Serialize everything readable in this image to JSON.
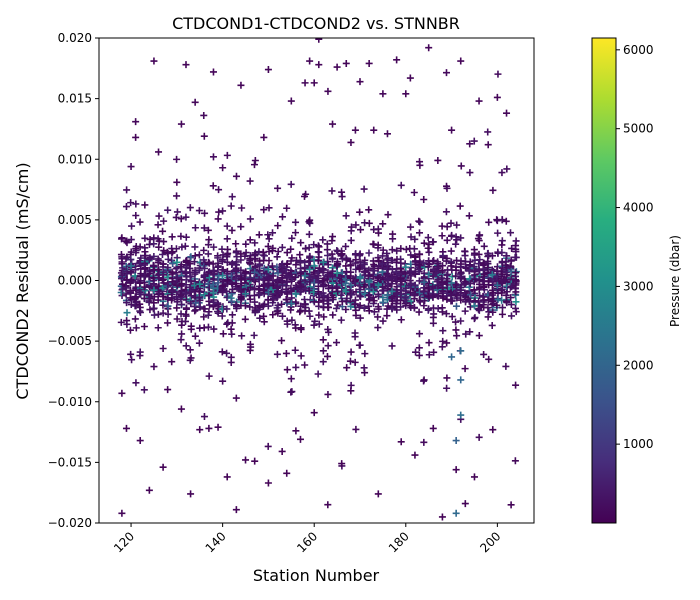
{
  "chart_data": {
    "type": "scatter",
    "marker": "plus",
    "title": "CTDCOND1-CTDCOND2 vs. STNNBR",
    "xlabel": "Station Number",
    "ylabel": "CTDCOND2 Residual (mS/cm)",
    "xlim": [
      113,
      208
    ],
    "ylim": [
      -0.02,
      0.02
    ],
    "xticks": [
      120,
      140,
      160,
      180,
      200
    ],
    "xtick_labels": [
      "120",
      "140",
      "160",
      "180",
      "200"
    ],
    "yticks": [
      -0.02,
      -0.015,
      -0.01,
      -0.005,
      0.0,
      0.005,
      0.01,
      0.015,
      0.02
    ],
    "ytick_labels": [
      "−0.020",
      "−0.015",
      "−0.010",
      "−0.005",
      "0.000",
      "0.005",
      "0.010",
      "0.015",
      "0.020"
    ],
    "grid": false,
    "colorbar": {
      "label": "Pressure (dbar)",
      "colormap": "viridis",
      "range": [
        0,
        6150
      ],
      "ticks": [
        1000,
        2000,
        3000,
        4000,
        5000,
        6000
      ],
      "tick_labels": [
        "1000",
        "2000",
        "3000",
        "4000",
        "5000",
        "6000"
      ]
    },
    "station_range": [
      118,
      204
    ],
    "series": [
      {
        "x": [
          118,
          118,
          119,
          119,
          120,
          121,
          121,
          122,
          122,
          123,
          124,
          125,
          125,
          126,
          127,
          128,
          130,
          131,
          131,
          132,
          133,
          134,
          135,
          136,
          137,
          138,
          138,
          139,
          140,
          140,
          141,
          143,
          144,
          145,
          146,
          147,
          149,
          150,
          150,
          152,
          153,
          154,
          155,
          155,
          156,
          157,
          158,
          159,
          160,
          160,
          161,
          161,
          162,
          163,
          163,
          164,
          165,
          166,
          167,
          168,
          169,
          170,
          171,
          172,
          173,
          174,
          175,
          176,
          177,
          178,
          179,
          180,
          181,
          182,
          183,
          184,
          185,
          186,
          187,
          188,
          189,
          190,
          191,
          192,
          193,
          194,
          195,
          196,
          197,
          198,
          199,
          200,
          201,
          202,
          203,
          120,
          125,
          130,
          135,
          140,
          145,
          150,
          155,
          160,
          165,
          170,
          175,
          180,
          185,
          190,
          195,
          200,
          192,
          192,
          192,
          191,
          191,
          190,
          159,
          162,
          158,
          176,
          175,
          177,
          174
        ],
        "y": [
          -0.0192,
          -0.0093,
          0.0061,
          -0.0122,
          0.0094,
          0.0118,
          0.0131,
          -0.0132,
          -0.0059,
          0.0027,
          -0.0173,
          0.0181,
          -0.0071,
          0.0106,
          -0.0154,
          0.0058,
          0.0081,
          -0.0106,
          0.0129,
          0.0178,
          -0.0176,
          0.0147,
          -0.0123,
          0.0119,
          -0.0122,
          0.0172,
          0.0102,
          -0.0121,
          0.0093,
          -0.0083,
          -0.0162,
          -0.0189,
          0.0161,
          -0.0148,
          0.0082,
          -0.0149,
          0.0118,
          0.0174,
          -0.0167,
          0.0076,
          -0.0141,
          -0.0159,
          0.0148,
          -0.0081,
          -0.0124,
          -0.0131,
          0.0163,
          0.0181,
          0.0163,
          -0.0109,
          0.0199,
          0.0178,
          -0.0058,
          0.0156,
          -0.0094,
          0.0129,
          0.0176,
          -0.0151,
          0.0179,
          -0.0091,
          0.0124,
          0.0164,
          -0.0076,
          0.0179,
          0.0124,
          -0.0176,
          0.0154,
          0.0121,
          -0.0054,
          0.0182,
          -0.0133,
          0.0154,
          0.0167,
          -0.0144,
          0.0098,
          -0.0082,
          0.0192,
          -0.0122,
          0.0099,
          -0.0195,
          0.0076,
          0.0124,
          -0.0156,
          0.0181,
          -0.0184,
          0.0089,
          -0.0162,
          0.0148,
          -0.0061,
          0.0112,
          -0.0123,
          0.0151,
          0.0089,
          0.0138,
          -0.0185,
          0.0012,
          -0.0008,
          0.0015,
          -0.0003,
          0.0004,
          -0.0011,
          0.0009,
          -0.0019,
          0.0012,
          0.0006,
          0.0002,
          -0.0014,
          0.0011,
          0.0005,
          -0.0002,
          -0.0021,
          -0.0004,
          -0.0058,
          -0.0082,
          -0.0111,
          -0.0132,
          -0.0192,
          -0.0063,
          0.0009,
          0.0015,
          0.0004,
          -0.0012,
          -0.0018,
          -0.0009,
          -0.0004
        ],
        "pressure": [
          120,
          80,
          200,
          60,
          150,
          90,
          110,
          70,
          300,
          250,
          60,
          90,
          180,
          100,
          60,
          400,
          90,
          60,
          110,
          90,
          70,
          120,
          60,
          90,
          80,
          90,
          200,
          60,
          110,
          150,
          60,
          70,
          90,
          60,
          160,
          60,
          90,
          80,
          60,
          140,
          60,
          60,
          110,
          180,
          60,
          60,
          110,
          90,
          90,
          70,
          120,
          90,
          200,
          110,
          150,
          100,
          90,
          60,
          80,
          90,
          120,
          90,
          150,
          80,
          100,
          60,
          110,
          120,
          200,
          80,
          60,
          90,
          100,
          60,
          150,
          120,
          90,
          60,
          90,
          60,
          200,
          110,
          60,
          90,
          60,
          200,
          60,
          90,
          180,
          100,
          60,
          90,
          200,
          100,
          60,
          2400,
          2800,
          3100,
          2900,
          2600,
          2500,
          2700,
          2300,
          2800,
          2950,
          2500,
          2300,
          2650,
          2400,
          2200,
          2500,
          2100,
          2100,
          2000,
          2200,
          1900,
          2100,
          2000,
          2600,
          2800,
          2300,
          2200,
          2100,
          2500,
          2800
        ]
      }
    ],
    "dense_cloud_seed": 7
  }
}
